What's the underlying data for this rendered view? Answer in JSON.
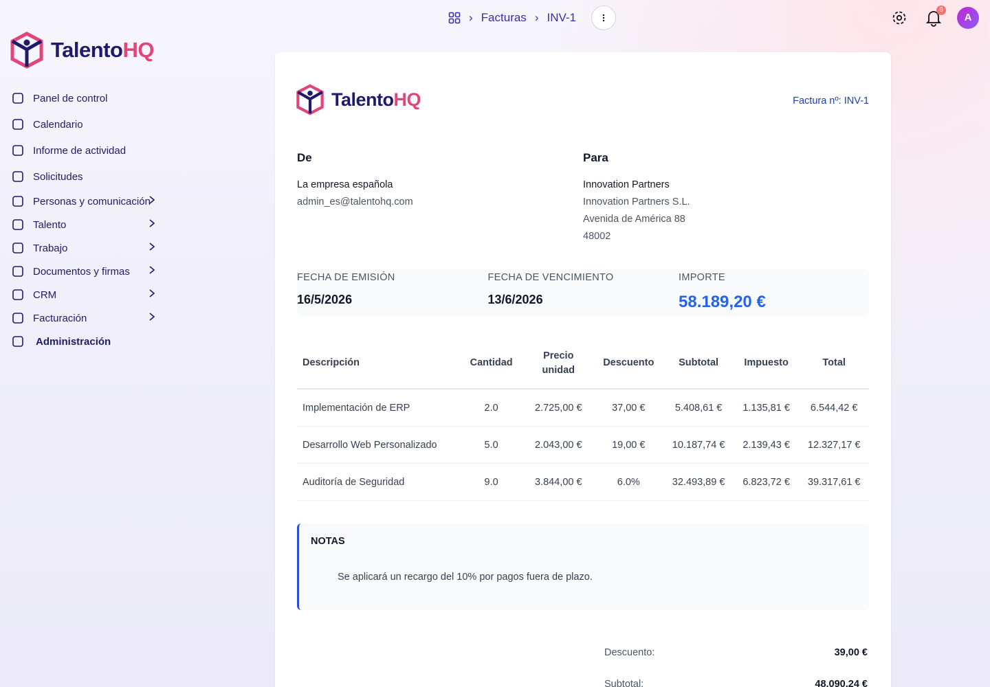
{
  "logo": {
    "part1": "Talento",
    "part2": "HQ"
  },
  "breadcrumb": [
    "Facturas",
    "INV-1"
  ],
  "notification_count": "6",
  "avatar": "A",
  "nav": [
    {
      "label": "Panel de control",
      "expandable": false
    },
    {
      "label": "Calendario",
      "expandable": false
    },
    {
      "label": "Informe de actividad",
      "expandable": false
    },
    {
      "label": "Solicitudes",
      "expandable": false
    },
    {
      "label": "Personas y comunicación",
      "expandable": true
    },
    {
      "label": "Talento",
      "expandable": true
    },
    {
      "label": "Trabajo",
      "expandable": true
    },
    {
      "label": "Documentos y firmas",
      "expandable": true
    },
    {
      "label": "CRM",
      "expandable": true
    },
    {
      "label": "Facturación",
      "expandable": true
    },
    {
      "label": "Administración",
      "expandable": false
    }
  ],
  "invoice": {
    "number_label": "Factura nº: INV-1",
    "from": {
      "heading": "De",
      "name": "La empresa española",
      "lines": [
        "admin_es@talentohq.com"
      ]
    },
    "to": {
      "heading": "Para",
      "name": "Innovation Partners",
      "lines": [
        "Innovation Partners S.L.",
        "Avenida de América 88",
        "48002"
      ]
    },
    "summary": [
      {
        "label": "FECHA DE EMISIÓN",
        "value": "16/5/2026"
      },
      {
        "label": "FECHA DE VENCIMIENTO",
        "value": "13/6/2026"
      },
      {
        "label": "IMPORTE",
        "value": "58.189,20 €"
      }
    ],
    "table": {
      "headers": [
        "Descripción",
        "Cantidad",
        "Precio unidad",
        "Descuento",
        "Subtotal",
        "Impuesto",
        "Total"
      ],
      "rows": [
        [
          "Implementación de ERP",
          "2.0",
          "2.725,00 €",
          "37,00 €",
          "5.408,61 €",
          "1.135,81 €",
          "6.544,42 €"
        ],
        [
          "Desarrollo Web Personalizado",
          "5.0",
          "2.043,00 €",
          "19,00 €",
          "10.187,74 €",
          "2.139,43 €",
          "12.327,17 €"
        ],
        [
          "Auditoría de Seguridad",
          "9.0",
          "3.844,00 €",
          "6.0%",
          "32.493,89 €",
          "6.823,72 €",
          "39.317,61 €"
        ]
      ]
    },
    "notes": {
      "title": "NOTAS",
      "text": "Se aplicará un recargo del 10% por pagos fuera de plazo."
    },
    "totals": [
      {
        "label": "Descuento:",
        "value": "39,00 €"
      },
      {
        "label": "Subtotal:",
        "value": "48.090,24 €"
      }
    ]
  }
}
